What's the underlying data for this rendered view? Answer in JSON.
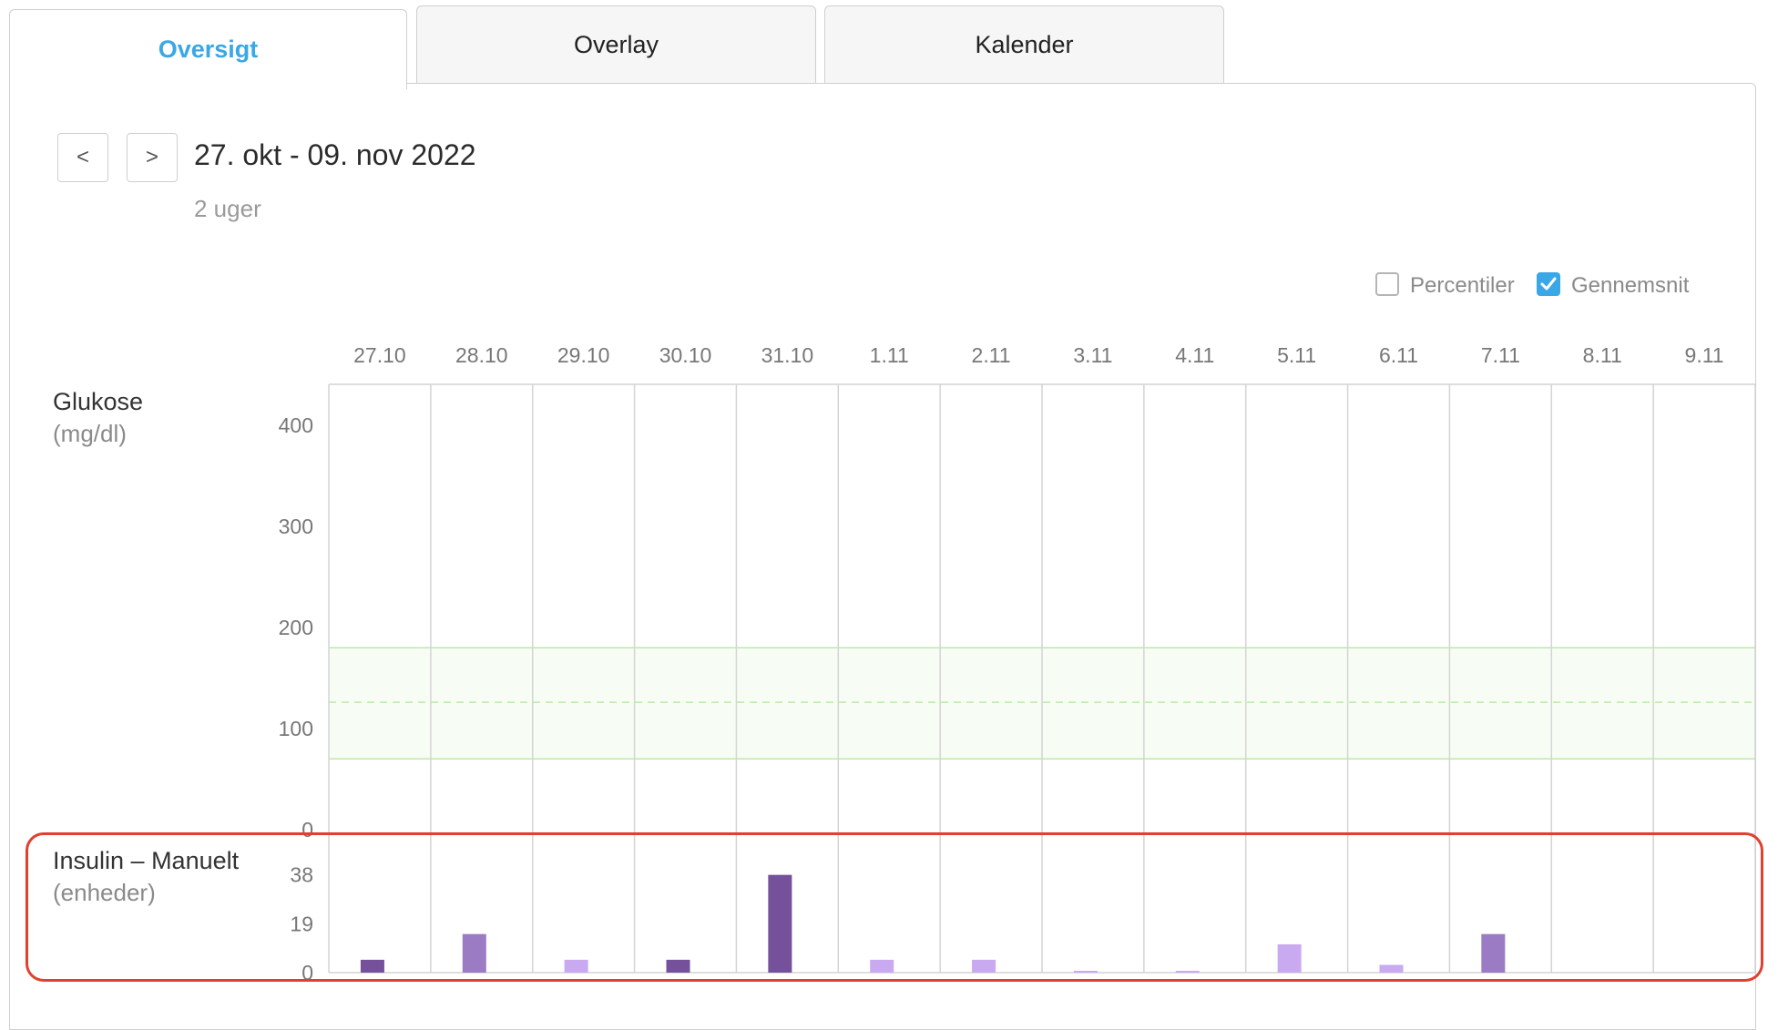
{
  "tabs": [
    {
      "label": "Oversigt",
      "active": true
    },
    {
      "label": "Overlay",
      "active": false
    },
    {
      "label": "Kalender",
      "active": false
    }
  ],
  "nav": {
    "prev_label": "<",
    "next_label": ">"
  },
  "date_range": "27. okt - 09. nov 2022",
  "period": "2 uger",
  "options": {
    "percentiles": {
      "label": "Percentiler",
      "checked": false
    },
    "average": {
      "label": "Gennemsnit",
      "checked": true
    }
  },
  "glucose": {
    "label": "Glukose",
    "unit": "(mg/dl)",
    "ticks": [
      "400",
      "300",
      "200",
      "100",
      "0"
    ],
    "target_range": [
      70,
      180
    ],
    "target_mid": 126,
    "ymax": 440
  },
  "insulin": {
    "label": "Insulin – Manuelt",
    "unit": "(enheder)",
    "ticks": [
      "38",
      "19",
      "0"
    ]
  },
  "colors": {
    "accent": "#3aa7e6",
    "insulin_dark": "#74519a",
    "insulin_mid": "#9b7cc4",
    "insulin_light": "#c9aaf0",
    "target_band": "#f7fdf4",
    "target_line": "#bde8ab",
    "callout": "#e0402f"
  },
  "chart_data": {
    "type": "bar",
    "categories": [
      "27.10",
      "28.10",
      "29.10",
      "30.10",
      "31.10",
      "1.11",
      "2.11",
      "3.11",
      "4.11",
      "5.11",
      "6.11",
      "7.11",
      "8.11",
      "9.11"
    ],
    "ylim": [
      0,
      40
    ],
    "series": [
      {
        "values": [
          5,
          15,
          5,
          5,
          38,
          5,
          5,
          0.5,
          0.5,
          11,
          3,
          15,
          0,
          0
        ],
        "shades": [
          "dark",
          "mid",
          "light",
          "dark",
          "dark",
          "light",
          "light",
          "light",
          "light",
          "light",
          "light",
          "mid",
          "none",
          "none"
        ]
      }
    ]
  }
}
